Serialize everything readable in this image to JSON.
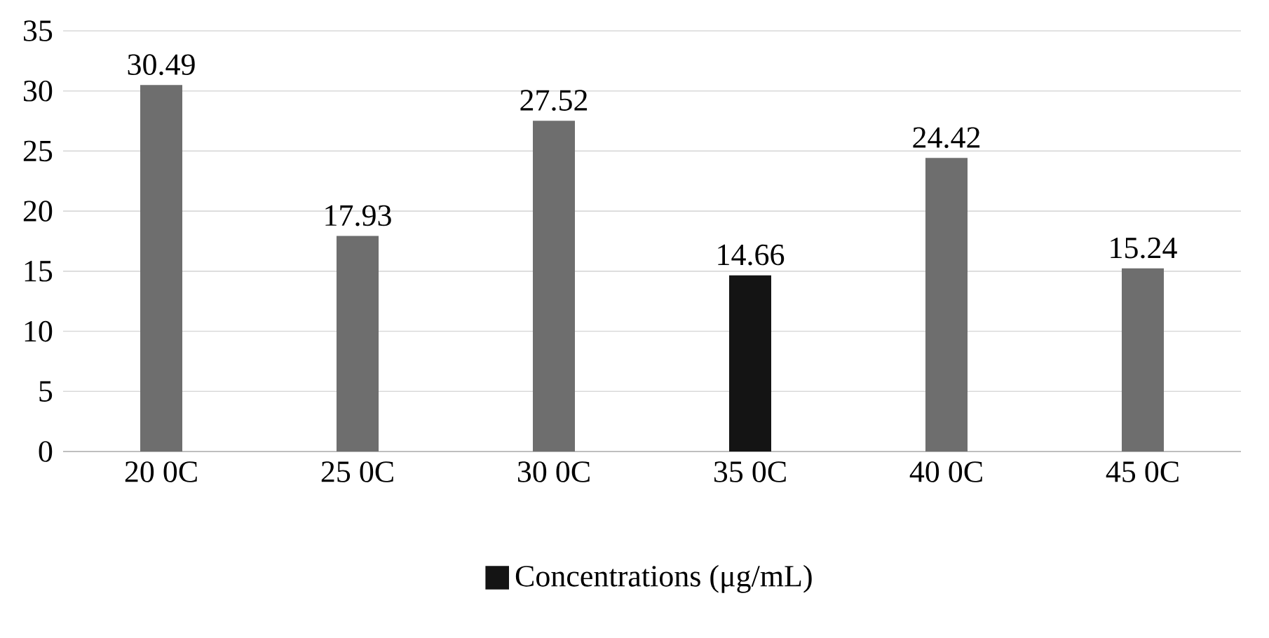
{
  "chart_data": {
    "type": "bar",
    "categories": [
      "20 0C",
      "25 0C",
      "30 0C",
      "35 0C",
      "40 0C",
      "45 0C"
    ],
    "series": [
      {
        "name": "Concentrations (μg/mL)",
        "color": "#141414",
        "colors": [
          "#6e6e6e",
          "#6e6e6e",
          "#6e6e6e",
          "#141414",
          "#6e6e6e",
          "#6e6e6e"
        ],
        "values": [
          30.49,
          17.93,
          27.52,
          14.66,
          24.42,
          15.24
        ]
      }
    ],
    "ylim": [
      0,
      35
    ],
    "yticks": [
      0,
      5,
      10,
      15,
      20,
      25,
      30,
      35
    ],
    "grid": "y",
    "legend": "bottom",
    "data_labels": true
  }
}
